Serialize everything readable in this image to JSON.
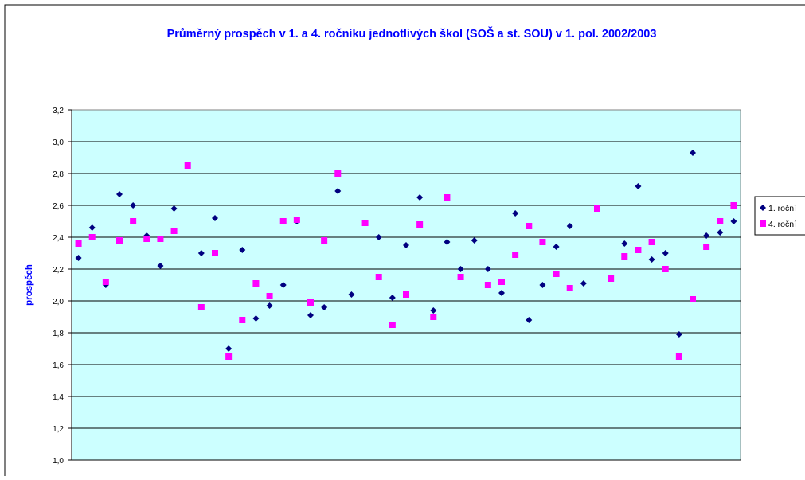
{
  "chart_data": {
    "type": "scatter",
    "title": "Průměrný prospěch v 1. a 4. ročníku jednotlivých škol (SOŠ a st. SOU) v 1. pol. 2002/2003",
    "xlabel": "",
    "ylabel": "prospěch",
    "ylim": [
      1.0,
      3.2
    ],
    "y_ticks": [
      "1,0",
      "1,2",
      "1,4",
      "1,6",
      "1,8",
      "2,0",
      "2,2",
      "2,4",
      "2,6",
      "2,8",
      "3,0",
      "3,2"
    ],
    "x_count": 49,
    "grid": "horizontal",
    "legend_position": "right",
    "colors": {
      "plot_background": "#ccffff",
      "title": "#0000ff",
      "series1": "#000080",
      "series2": "#ff00ff"
    },
    "series": [
      {
        "name": "1. roční",
        "marker": "diamond",
        "values": [
          2.27,
          2.46,
          2.1,
          2.67,
          2.6,
          2.41,
          2.22,
          2.58,
          null,
          2.3,
          2.52,
          1.7,
          2.32,
          1.89,
          1.97,
          2.1,
          2.5,
          1.91,
          1.96,
          2.69,
          2.04,
          null,
          2.4,
          2.02,
          2.35,
          2.65,
          1.94,
          2.37,
          2.2,
          2.38,
          2.2,
          2.05,
          2.55,
          1.88,
          2.1,
          2.34,
          2.47,
          2.11,
          null,
          null,
          2.36,
          2.72,
          2.26,
          2.3,
          1.79,
          2.93,
          2.41,
          2.43,
          2.5
        ]
      },
      {
        "name": "4. roční",
        "marker": "square",
        "values": [
          2.36,
          2.4,
          2.12,
          2.38,
          2.5,
          2.39,
          2.39,
          2.44,
          2.85,
          1.96,
          2.3,
          1.65,
          1.88,
          2.11,
          2.03,
          2.5,
          2.51,
          1.99,
          2.38,
          2.8,
          null,
          2.49,
          2.15,
          1.85,
          2.04,
          2.48,
          1.9,
          2.65,
          2.15,
          null,
          2.1,
          2.12,
          2.29,
          2.47,
          2.37,
          2.17,
          2.08,
          null,
          2.58,
          2.14,
          2.28,
          2.32,
          2.37,
          2.2,
          1.65,
          2.01,
          2.34,
          2.5,
          2.6
        ]
      }
    ]
  }
}
